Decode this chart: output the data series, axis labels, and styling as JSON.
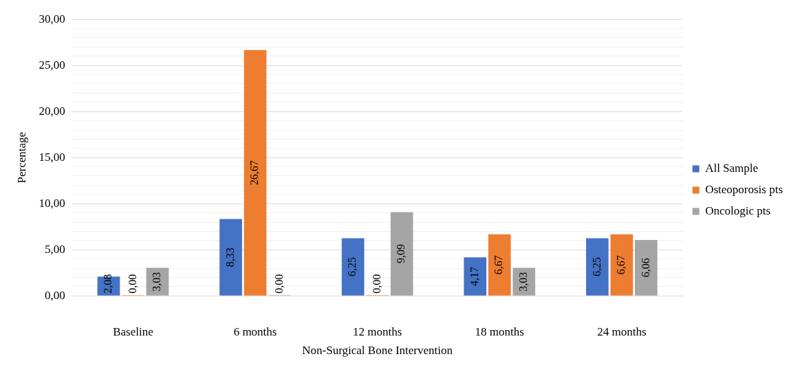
{
  "chart_data": {
    "type": "bar",
    "xlabel": "Non-Surgical Bone Intervention",
    "ylabel": "Percentage",
    "categories": [
      "Baseline",
      "6 months",
      "12 months",
      "18 months",
      "24 months"
    ],
    "series": [
      {
        "name": "All Sample",
        "color": "#4472c4",
        "values": [
          2.08,
          8.33,
          6.25,
          4.17,
          6.25
        ],
        "value_labels": [
          "2,08",
          "8,33",
          "6,25",
          "4,17",
          "6,25"
        ]
      },
      {
        "name": "Osteoporosis pts",
        "color": "#ed7d31",
        "values": [
          0,
          26.67,
          0,
          6.67,
          6.67
        ],
        "value_labels": [
          "0,00",
          "26,67",
          "0,00",
          "6,67",
          "6,67"
        ]
      },
      {
        "name": "Oncologic pts",
        "color": "#a5a5a5",
        "values": [
          3.03,
          0,
          9.09,
          3.03,
          6.06
        ],
        "value_labels": [
          "3,03",
          "0,00",
          "9,09",
          "3,03",
          "6,06"
        ]
      }
    ],
    "ylim": [
      0,
      30
    ],
    "yticks": [
      {
        "value": 0,
        "label": "0,00"
      },
      {
        "value": 1,
        "label": null
      },
      {
        "value": 2,
        "label": null
      },
      {
        "value": 3,
        "label": null
      },
      {
        "value": 4,
        "label": null
      },
      {
        "value": 5,
        "label": "5,00"
      },
      {
        "value": 6,
        "label": null
      },
      {
        "value": 7,
        "label": null
      },
      {
        "value": 8,
        "label": null
      },
      {
        "value": 9,
        "label": null
      },
      {
        "value": 10,
        "label": "10,00"
      },
      {
        "value": 11,
        "label": null
      },
      {
        "value": 12,
        "label": null
      },
      {
        "value": 13,
        "label": null
      },
      {
        "value": 14,
        "label": null
      },
      {
        "value": 15,
        "label": "15,00"
      },
      {
        "value": 16,
        "label": null
      },
      {
        "value": 17,
        "label": null
      },
      {
        "value": 18,
        "label": null
      },
      {
        "value": 19,
        "label": null
      },
      {
        "value": 20,
        "label": "20,00"
      },
      {
        "value": 21,
        "label": null
      },
      {
        "value": 22,
        "label": null
      },
      {
        "value": 23,
        "label": null
      },
      {
        "value": 24,
        "label": null
      },
      {
        "value": 25,
        "label": "25,00"
      },
      {
        "value": 26,
        "label": null
      },
      {
        "value": 27,
        "label": null
      },
      {
        "value": 28,
        "label": null
      },
      {
        "value": 29,
        "label": null
      },
      {
        "value": 30,
        "label": "30,00"
      }
    ],
    "grid": "y",
    "legend": "right"
  }
}
